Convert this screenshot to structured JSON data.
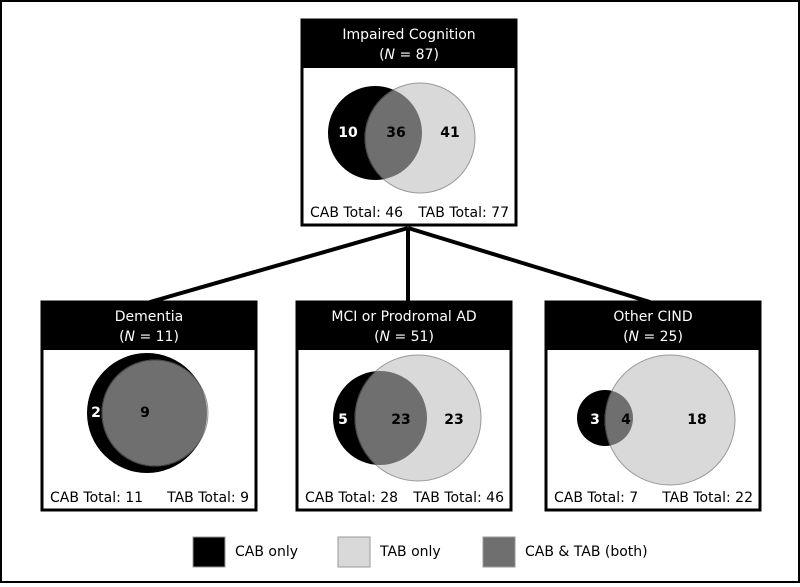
{
  "nodes": [
    {
      "title": "Impaired Cognition",
      "subtitle": [
        "(",
        "N",
        " = 87)"
      ],
      "cab_only": "10",
      "both": "36",
      "tab_only": "41",
      "cab_total": "CAB Total: 46",
      "tab_total": "TAB Total: 77"
    },
    {
      "title": "Dementia",
      "subtitle": [
        "(",
        "N",
        " = 11)"
      ],
      "cab_only": "2",
      "both": "9",
      "cab_total": "CAB Total: 11",
      "tab_total": "TAB Total: 9"
    },
    {
      "title": "MCI or Prodromal AD",
      "subtitle": [
        "(",
        "N",
        " = 51)"
      ],
      "cab_only": "5",
      "both": "23",
      "tab_only": "23",
      "cab_total": "CAB Total: 28",
      "tab_total": "TAB Total: 46"
    },
    {
      "title": "Other CIND",
      "subtitle": [
        "(",
        "N",
        " = 25)"
      ],
      "cab_only": "3",
      "both": "4",
      "tab_only": "18",
      "cab_total": "CAB Total: 7",
      "tab_total": "TAB Total: 22"
    }
  ],
  "legend": [
    "CAB only",
    "TAB only",
    "CAB & TAB (both)"
  ]
}
